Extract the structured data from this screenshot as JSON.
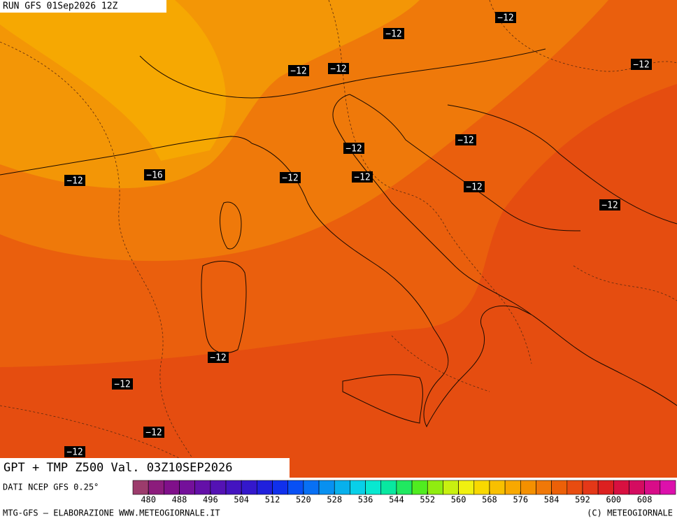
{
  "header": {
    "run": "RUN GFS 01Sep2026 12Z"
  },
  "labels": [
    "−12",
    "−12",
    "−12",
    "−12",
    "−12",
    "−12",
    "−12",
    "−12",
    "−12",
    "−12",
    "−12",
    "−12",
    "−16",
    "−12",
    "−12",
    "−12",
    "−12"
  ],
  "title": "GPT + TMP Z500 Val. 03Z10SEP2026",
  "source": "DATI NCEP GFS 0.25°",
  "footer": {
    "left": "MTG-GFS — ELABORAZIONE WWW.METEOGIORNALE.IT",
    "right": "(C) METEOGIORNALE"
  },
  "colorbar": {
    "range": [
      476,
      616
    ],
    "ticks": [
      480,
      488,
      496,
      504,
      512,
      520,
      528,
      536,
      544,
      552,
      560,
      568,
      576,
      584,
      592,
      600,
      608
    ],
    "colors": [
      "#9c3c6c",
      "#8c1c7c",
      "#80108a",
      "#74109a",
      "#6410a8",
      "#5412b4",
      "#4414c0",
      "#3418cc",
      "#2020dc",
      "#1030ec",
      "#0850f4",
      "#0870f4",
      "#0890f0",
      "#08b0ec",
      "#08d0e8",
      "#08e8d0",
      "#08e8a0",
      "#20e860",
      "#50ec20",
      "#90ec10",
      "#c8f010",
      "#f0f010",
      "#f8d800",
      "#f8c000",
      "#f8a800",
      "#f49000",
      "#f07808",
      "#ec6008",
      "#e84c10",
      "#e43818",
      "#dc2020",
      "#d81040",
      "#d40c60",
      "#d80c88",
      "#dc10ac"
    ]
  }
}
